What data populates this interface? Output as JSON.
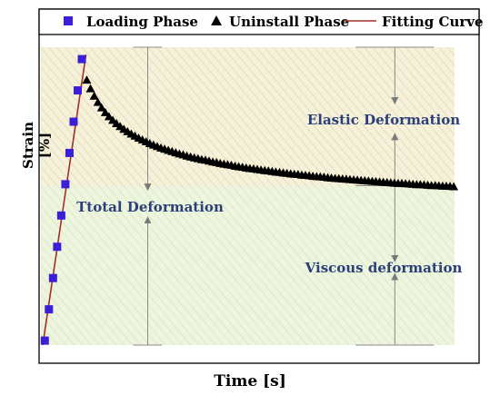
{
  "chart_data": {
    "type": "scatter",
    "title": "",
    "xlabel": "Time [s]",
    "ylabel": "Strain [%]",
    "xlim": [
      0,
      100
    ],
    "ylim": [
      0,
      100
    ],
    "grid": false,
    "legend_position": "top",
    "series": [
      {
        "name": "Loading Phase",
        "marker": "square",
        "color": "#3a1fd6",
        "x": [
          0.5,
          1.5,
          2.5,
          3.5,
          4.5,
          5.5,
          6.5,
          7.5,
          8.5,
          9.5
        ],
        "y": [
          1.5,
          12,
          22.5,
          33,
          43.5,
          54,
          64.5,
          75,
          85.5,
          96
        ]
      },
      {
        "name": "Uninstall Phase",
        "marker": "triangle",
        "color": "#000000",
        "x": [
          10.7,
          11.6,
          12.5,
          13.4,
          14.3,
          15.2,
          16.1,
          17.0,
          17.9,
          18.8,
          19.7,
          20.6,
          21.5,
          22.4,
          23.3,
          24.2,
          25.1,
          26.0,
          26.9,
          27.8,
          28.7,
          29.6,
          30.5,
          31.4,
          32.3,
          33.2,
          34.1,
          35.0,
          35.9,
          36.8,
          37.7,
          38.6,
          39.5,
          40.4,
          41.3,
          42.2,
          43.1,
          44.0,
          44.9,
          45.8,
          46.7,
          47.6,
          48.5,
          49.4,
          50.3,
          51.2,
          52.1,
          53.0,
          53.9,
          54.8,
          55.7,
          56.6,
          57.5,
          58.4,
          59.3,
          60.2,
          61.1,
          62.0,
          62.9,
          63.8,
          64.7,
          65.6,
          66.5,
          67.4,
          68.3,
          69.2,
          70.1,
          71.0,
          71.9,
          72.8,
          73.7,
          74.6,
          75.5,
          76.4,
          77.3,
          78.2,
          79.1,
          80.0,
          80.9,
          81.8,
          82.7,
          83.6,
          84.5,
          85.4,
          86.3,
          87.2,
          88.1,
          89.0,
          89.9,
          90.8,
          91.7,
          92.6,
          93.5,
          94.4,
          95.3,
          96.2,
          97.1,
          98.0,
          98.9,
          99.8
        ],
        "y": [
          89.0,
          86.1,
          83.6,
          81.5,
          79.7,
          78.1,
          76.7,
          75.5,
          74.4,
          73.4,
          72.5,
          71.7,
          70.9,
          70.2,
          69.5,
          68.9,
          68.3,
          67.7,
          67.2,
          66.7,
          66.2,
          65.8,
          65.4,
          65.0,
          64.6,
          64.2,
          63.9,
          63.5,
          63.2,
          62.9,
          62.6,
          62.3,
          62.1,
          61.8,
          61.5,
          61.3,
          61.0,
          60.8,
          60.6,
          60.4,
          60.1,
          59.9,
          59.7,
          59.5,
          59.3,
          59.2,
          59.0,
          58.8,
          58.6,
          58.5,
          58.3,
          58.1,
          58.0,
          57.8,
          57.7,
          57.5,
          57.4,
          57.3,
          57.1,
          57.0,
          56.9,
          56.7,
          56.6,
          56.5,
          56.4,
          56.2,
          56.1,
          56.0,
          55.9,
          55.8,
          55.7,
          55.6,
          55.5,
          55.4,
          55.3,
          55.2,
          55.1,
          55.0,
          54.9,
          54.8,
          54.7,
          54.6,
          54.5,
          54.4,
          54.3,
          54.3,
          54.2,
          54.1,
          54.0,
          53.9,
          53.9,
          53.8,
          53.7,
          53.6,
          53.6,
          53.5,
          53.4,
          53.4,
          53.3,
          53.2
        ]
      },
      {
        "name": "Fitting Curve",
        "marker": "line",
        "color": "#a0302a",
        "x": [
          0,
          10.5
        ],
        "y": [
          0,
          97.5
        ]
      }
    ],
    "annotations": [
      "Elastic Deformation",
      "Ttotal Deformation",
      "Viscous deformation"
    ],
    "regions": [
      {
        "name": "elastic-region",
        "y_range": [
          53.5,
          100
        ],
        "color": "#f3edd0"
      },
      {
        "name": "viscous-region",
        "y_range": [
          0,
          53.5
        ],
        "color": "#eaf3d8"
      }
    ]
  }
}
